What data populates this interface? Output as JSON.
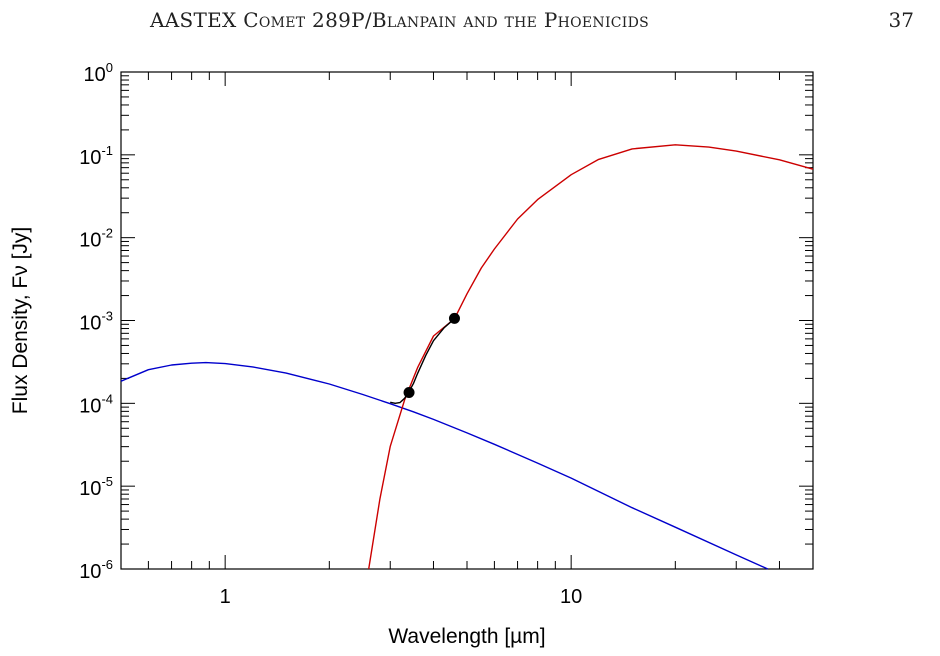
{
  "header": {
    "running_head": "AASTEX Comet 289P/Blanpain and the Phoenicids",
    "page_number": "37"
  },
  "chart_data": {
    "type": "line",
    "xlabel": "Wavelength [µm]",
    "ylabel": "Flux Density, Fν [Jy]",
    "xscale": "log",
    "yscale": "log",
    "xlim": [
      0.5,
      50
    ],
    "ylim": [
      1e-06,
      1
    ],
    "x_tick_labels": [
      "1",
      "10"
    ],
    "y_tick_labels": [
      {
        "base": "10",
        "exp": "0"
      },
      {
        "base": "10",
        "exp": "-1"
      },
      {
        "base": "10",
        "exp": "-2"
      },
      {
        "base": "10",
        "exp": "-3"
      },
      {
        "base": "10",
        "exp": "-4"
      },
      {
        "base": "10",
        "exp": "-5"
      },
      {
        "base": "10",
        "exp": "-6"
      }
    ],
    "grid": false,
    "series": [
      {
        "color": "#0000cc",
        "x": [
          0.5,
          0.6,
          0.7,
          0.8,
          0.88,
          1.0,
          1.2,
          1.5,
          2.0,
          2.5,
          3.0,
          3.5,
          4.0,
          5.0,
          6.0,
          8.0,
          10.0,
          15.0,
          20.0,
          30.0,
          37.0
        ],
        "y": [
          0.000185,
          0.000255,
          0.00029,
          0.000305,
          0.00031,
          0.000302,
          0.000275,
          0.000232,
          0.000171,
          0.000128,
          9.9e-05,
          7.9e-05,
          6.4e-05,
          4.4e-05,
          3.2e-05,
          1.9e-05,
          1.25e-05,
          5.5e-06,
          3.2e-06,
          1.48e-06,
          1e-06
        ]
      },
      {
        "color": "#cc0000",
        "x": [
          2.6,
          2.8,
          3.0,
          3.3,
          3.6,
          4.0,
          4.6,
          5.0,
          5.5,
          6.0,
          7.0,
          8.0,
          10.0,
          12.0,
          15.0,
          20.0,
          25.0,
          30.0,
          40.0,
          50.0
        ],
        "y": [
          1e-06,
          7e-06,
          3e-05,
          0.00011,
          0.00027,
          0.00065,
          0.00105,
          0.0021,
          0.0043,
          0.0073,
          0.0168,
          0.0288,
          0.0575,
          0.088,
          0.118,
          0.132,
          0.124,
          0.111,
          0.087,
          0.067
        ]
      },
      {
        "color": "#000000",
        "x": [
          3.0,
          3.1,
          3.2,
          3.3,
          3.4,
          3.5,
          3.6,
          3.8,
          4.0,
          4.3,
          4.6
        ],
        "y": [
          0.000103,
          0.0001,
          0.000102,
          0.000115,
          0.000138,
          0.000173,
          0.00023,
          0.00038,
          0.00057,
          0.00082,
          0.00105
        ]
      }
    ],
    "points": {
      "color": "#000000",
      "x": [
        3.4,
        4.6
      ],
      "y": [
        0.000135,
        0.00106
      ]
    }
  }
}
